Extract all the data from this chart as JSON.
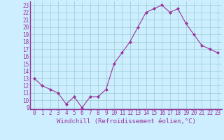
{
  "x": [
    0,
    1,
    2,
    3,
    4,
    5,
    6,
    7,
    8,
    9,
    10,
    11,
    12,
    13,
    14,
    15,
    16,
    17,
    18,
    19,
    20,
    21,
    22,
    23
  ],
  "y": [
    13,
    12,
    11.5,
    11,
    9.5,
    10.5,
    9,
    10.5,
    10.5,
    11.5,
    15,
    16.5,
    18,
    20,
    22,
    22.5,
    23,
    22,
    22.5,
    20.5,
    19,
    17.5,
    17,
    16.5
  ],
  "line_color": "#993399",
  "marker": "D",
  "marker_size": 2,
  "bg_color": "#cceeff",
  "grid_color": "#99cccc",
  "xlabel": "Windchill (Refroidissement éolien,°C)",
  "xlabel_color": "#993399",
  "tick_color": "#993399",
  "label_fontsize": 5.5,
  "xlabel_fontsize": 6.5,
  "ylim": [
    8.8,
    23.5
  ],
  "xlim": [
    -0.5,
    23.5
  ],
  "yticks": [
    9,
    10,
    11,
    12,
    13,
    14,
    15,
    16,
    17,
    18,
    19,
    20,
    21,
    22,
    23
  ],
  "xticks": [
    0,
    1,
    2,
    3,
    4,
    5,
    6,
    7,
    8,
    9,
    10,
    11,
    12,
    13,
    14,
    15,
    16,
    17,
    18,
    19,
    20,
    21,
    22,
    23
  ]
}
